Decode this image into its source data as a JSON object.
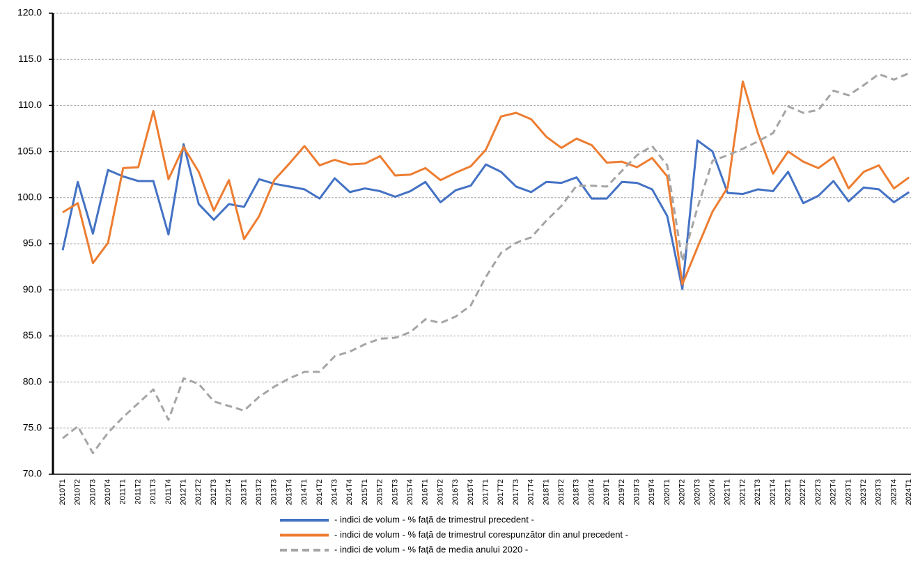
{
  "chart_data": {
    "type": "line",
    "categories": [
      "2010T1",
      "2010T2",
      "2010T3",
      "2010T4",
      "2011T1",
      "2011T2",
      "2011T3",
      "2011T4",
      "2012T1",
      "2012T2",
      "2012T3",
      "2012T4",
      "2013T1",
      "2013T2",
      "2013T3",
      "2013T4",
      "2014T1",
      "2014T2",
      "2014T3",
      "2014T4",
      "2015T1",
      "2015T2",
      "2015T3",
      "2015T4",
      "2016T1",
      "2016T2",
      "2016T3",
      "2016T4",
      "2017T1",
      "2017T2",
      "2017T3",
      "2017T4",
      "2018T1",
      "2018T2",
      "2018T3",
      "2018T4",
      "2019T1",
      "2019T2",
      "2019T3",
      "2019T4",
      "2020T1",
      "2020T2",
      "2020T3",
      "2020T4",
      "2021T1",
      "2021T2",
      "2021T3",
      "2021T4",
      "2022T1",
      "2022T2",
      "2022T3",
      "2022T4",
      "2023T1",
      "2023T2",
      "2023T3",
      "2023T4",
      "2024T1"
    ],
    "series": [
      {
        "name": "- indici de volum - % faţă de trimestrul precedent -",
        "color": "#4472c4",
        "line_style": "solid",
        "values": [
          94.3,
          101.7,
          96.1,
          103.0,
          102.3,
          101.8,
          101.8,
          96.0,
          105.8,
          99.3,
          97.6,
          99.3,
          99.0,
          102.0,
          101.5,
          101.2,
          100.9,
          99.9,
          102.1,
          100.6,
          101.0,
          100.7,
          100.1,
          100.7,
          101.7,
          99.5,
          100.8,
          101.3,
          103.6,
          102.8,
          101.2,
          100.6,
          101.7,
          101.6,
          102.2,
          99.9,
          99.9,
          101.7,
          101.6,
          100.9,
          98.0,
          90.1,
          106.2,
          105.0,
          100.5,
          100.4,
          100.9,
          100.7,
          102.8,
          99.4,
          100.2,
          101.8,
          99.6,
          101.1,
          100.9,
          99.5,
          100.6
        ]
      },
      {
        "name": "- indici de volum - % faţă de trimestrul corespunzător din anul precedent -",
        "color": "#ed7d31",
        "line_style": "solid",
        "values": [
          98.4,
          99.4,
          92.9,
          95.1,
          103.2,
          103.3,
          109.4,
          102.0,
          105.5,
          102.8,
          98.6,
          101.9,
          95.5,
          98.0,
          101.9,
          103.7,
          105.6,
          103.5,
          104.1,
          103.6,
          103.7,
          104.5,
          102.4,
          102.5,
          103.2,
          101.9,
          102.7,
          103.4,
          105.2,
          108.8,
          109.2,
          108.5,
          106.6,
          105.4,
          106.4,
          105.7,
          103.8,
          103.9,
          103.3,
          104.3,
          102.3,
          90.6,
          94.6,
          98.5,
          101.1,
          112.6,
          107.0,
          102.6,
          105.0,
          103.9,
          103.2,
          104.4,
          101.0,
          102.8,
          103.5,
          101.0,
          102.2
        ]
      },
      {
        "name": "- indici de volum - % faţă de media anului 2020 -",
        "color": "#a5a5a5",
        "line_style": "dashed",
        "values": [
          73.9,
          75.2,
          72.3,
          74.5,
          76.2,
          77.7,
          79.2,
          75.9,
          80.4,
          79.8,
          77.9,
          77.4,
          76.9,
          78.4,
          79.5,
          80.4,
          81.1,
          81.1,
          82.8,
          83.3,
          84.1,
          84.7,
          84.8,
          85.4,
          86.8,
          86.4,
          87.1,
          88.3,
          91.4,
          94.0,
          95.1,
          95.7,
          97.5,
          99.1,
          101.3,
          101.3,
          101.2,
          102.9,
          104.6,
          105.6,
          103.5,
          93.1,
          98.9,
          104.0,
          104.6,
          105.3,
          106.1,
          107.0,
          109.9,
          109.2,
          109.5,
          111.6,
          111.1,
          112.2,
          113.4,
          112.8,
          113.5
        ]
      }
    ],
    "ylim": [
      70,
      120
    ],
    "yticks": [
      {
        "value": 70,
        "label": "70.0"
      },
      {
        "value": 75,
        "label": "75.0"
      },
      {
        "value": 80,
        "label": "80.0"
      },
      {
        "value": 85,
        "label": "85.0"
      },
      {
        "value": 90,
        "label": "90.0"
      },
      {
        "value": 95,
        "label": "95.0"
      },
      {
        "value": 100,
        "label": "100.0"
      },
      {
        "value": 105,
        "label": "105.0"
      },
      {
        "value": 110,
        "label": "110.0"
      },
      {
        "value": 115,
        "label": "115.0"
      },
      {
        "value": 120,
        "label": "120.0"
      }
    ],
    "grid": true
  }
}
